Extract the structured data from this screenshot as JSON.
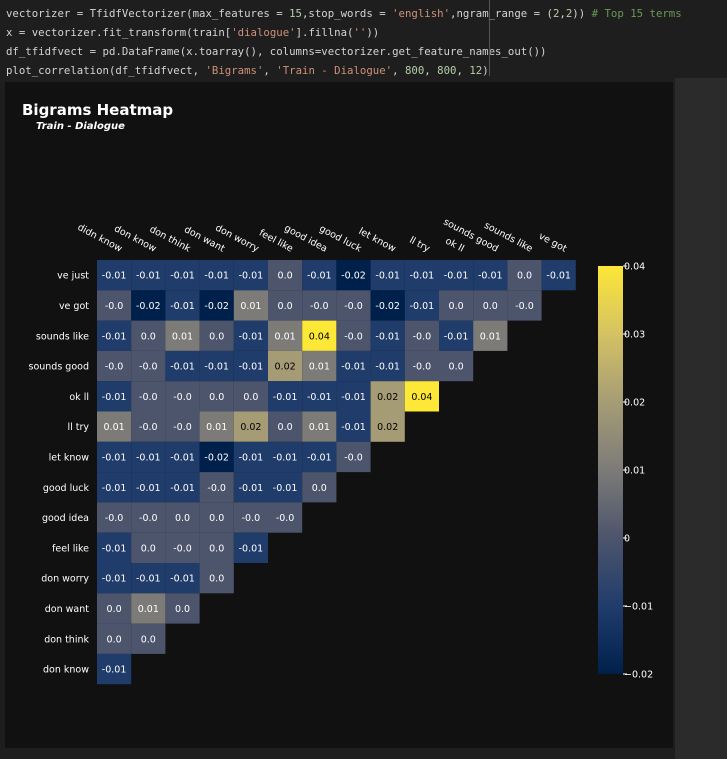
{
  "code_lines": [
    [
      {
        "t": "vectorizer = TfidfVectorizer(max_features = ",
        "c": ""
      },
      {
        "t": "15",
        "c": "tok-num"
      },
      {
        "t": ",stop_words = ",
        "c": ""
      },
      {
        "t": "'english'",
        "c": "tok-str"
      },
      {
        "t": ",ngram_range = (",
        "c": ""
      },
      {
        "t": "2",
        "c": "tok-num"
      },
      {
        "t": ",",
        "c": ""
      },
      {
        "t": "2",
        "c": "tok-num"
      },
      {
        "t": ")) ",
        "c": ""
      },
      {
        "t": "# Top 15 terms",
        "c": "tok-com"
      }
    ],
    [
      {
        "t": "x = vectorizer.fit_transform(train[",
        "c": ""
      },
      {
        "t": "'dialogue'",
        "c": "tok-str"
      },
      {
        "t": "].fillna(",
        "c": ""
      },
      {
        "t": "''",
        "c": "tok-str"
      },
      {
        "t": "))",
        "c": ""
      }
    ],
    [
      {
        "t": "df_tfidfvect = pd.DataFrame(x.toarray(), columns=vectorizer.get_feature_names_out())",
        "c": ""
      }
    ],
    [
      {
        "t": "plot_correlation(df_tfidfvect, ",
        "c": ""
      },
      {
        "t": "'Bigrams'",
        "c": "tok-str"
      },
      {
        "t": ", ",
        "c": ""
      },
      {
        "t": "'Train - Dialogue'",
        "c": "tok-str"
      },
      {
        "t": ", ",
        "c": ""
      },
      {
        "t": "800",
        "c": "tok-num"
      },
      {
        "t": ", ",
        "c": ""
      },
      {
        "t": "800",
        "c": "tok-num"
      },
      {
        "t": ", ",
        "c": ""
      },
      {
        "t": "12",
        "c": "tok-num"
      },
      {
        "t": ")",
        "c": ""
      }
    ]
  ],
  "chart_data": {
    "type": "heatmap",
    "title": "Bigrams Heatmap",
    "subtitle": "Train - Dialogue",
    "x_labels": [
      "didn know",
      "don know",
      "don think",
      "don want",
      "don worry",
      "feel like",
      "good idea",
      "good luck",
      "let know",
      "ll try",
      "ok ll",
      "sounds good",
      "sounds like",
      "ve got"
    ],
    "y_labels": [
      "ve just",
      "ve got",
      "sounds like",
      "sounds good",
      "ok ll",
      "ll try",
      "let know",
      "good luck",
      "good idea",
      "feel like",
      "don worry",
      "don want",
      "don think",
      "don know"
    ],
    "values": [
      [
        -0.01,
        -0.01,
        -0.01,
        -0.01,
        -0.01,
        0.0,
        -0.01,
        -0.02,
        -0.01,
        -0.01,
        -0.01,
        -0.01,
        0.0,
        -0.01
      ],
      [
        -0.0,
        -0.02,
        -0.01,
        -0.02,
        0.01,
        0.0,
        -0.0,
        -0.0,
        -0.02,
        -0.01,
        0.0,
        0.0,
        -0.0
      ],
      [
        -0.01,
        0.0,
        0.01,
        0.0,
        -0.01,
        0.01,
        0.04,
        -0.0,
        -0.01,
        -0.0,
        -0.01,
        0.01
      ],
      [
        -0.0,
        -0.0,
        -0.01,
        -0.01,
        -0.01,
        0.02,
        0.01,
        -0.01,
        -0.01,
        -0.0,
        0.0
      ],
      [
        -0.01,
        -0.0,
        -0.0,
        0.0,
        0.0,
        -0.01,
        -0.01,
        -0.01,
        0.02,
        0.04
      ],
      [
        0.01,
        -0.0,
        -0.0,
        0.01,
        0.02,
        0.0,
        0.01,
        -0.01,
        0.02
      ],
      [
        -0.01,
        -0.01,
        -0.01,
        -0.02,
        -0.01,
        -0.01,
        -0.01,
        -0.0
      ],
      [
        -0.01,
        -0.01,
        -0.01,
        -0.0,
        -0.01,
        -0.01,
        0.0
      ],
      [
        -0.0,
        -0.0,
        0.0,
        0.0,
        -0.0,
        -0.0
      ],
      [
        -0.01,
        0.0,
        -0.0,
        0.0,
        -0.01
      ],
      [
        -0.01,
        -0.01,
        -0.01,
        0.0
      ],
      [
        0.0,
        0.01,
        0.0
      ],
      [
        0.0,
        0.0
      ],
      [
        -0.01
      ]
    ],
    "colorscale": "cividis",
    "zmin": -0.02,
    "zmax": 0.04,
    "colorbar_ticks": [
      "0.04",
      "0.03",
      "0.02",
      "0.01",
      "0",
      "−0.01",
      "−0.02"
    ]
  }
}
